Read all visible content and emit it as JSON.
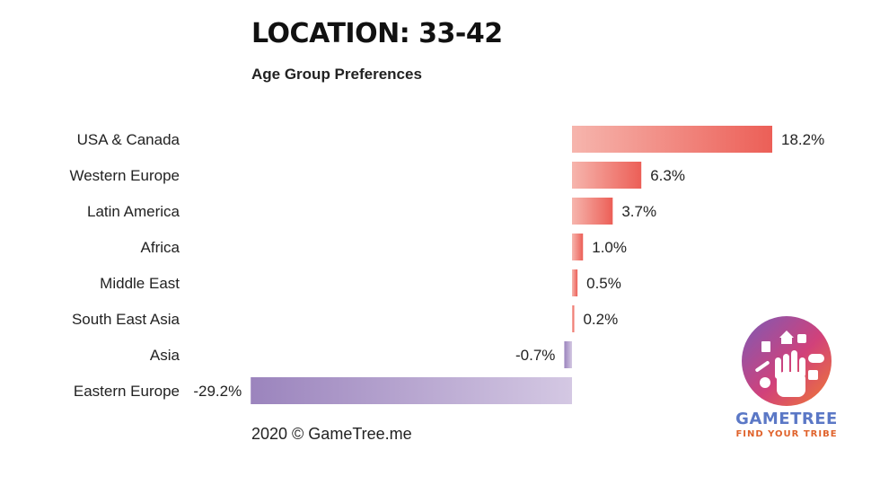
{
  "title": "LOCATION: 33-42",
  "subtitle": "Age Group Preferences",
  "footer": "2020 © GameTree.me",
  "logo": {
    "name": "GAMETREE",
    "tagline": "FIND YOUR TRIBE",
    "icon": "gametree-hand-logo-icon"
  },
  "colors": {
    "positive_light": "#f6b5ad",
    "positive_dark": "#ec5f57",
    "negative_light": "#d4c8e3",
    "negative_dark": "#9b84bd",
    "text": "#222222"
  },
  "chart_data": {
    "type": "bar",
    "orientation": "horizontal",
    "categories": [
      "USA & Canada",
      "Western Europe",
      "Latin America",
      "Africa",
      "Middle East",
      "South East Asia",
      "Asia",
      "Eastern Europe"
    ],
    "values": [
      18.2,
      6.3,
      3.7,
      1.0,
      0.5,
      0.2,
      -0.7,
      -29.2
    ],
    "value_labels": [
      "18.2%",
      "6.3%",
      "3.7%",
      "1.0%",
      "0.5%",
      "0.2%",
      "-0.7%",
      "-29.2%"
    ],
    "unit": "%",
    "xlim": [
      -29.2,
      18.2
    ],
    "grid": false,
    "legend": "none"
  }
}
